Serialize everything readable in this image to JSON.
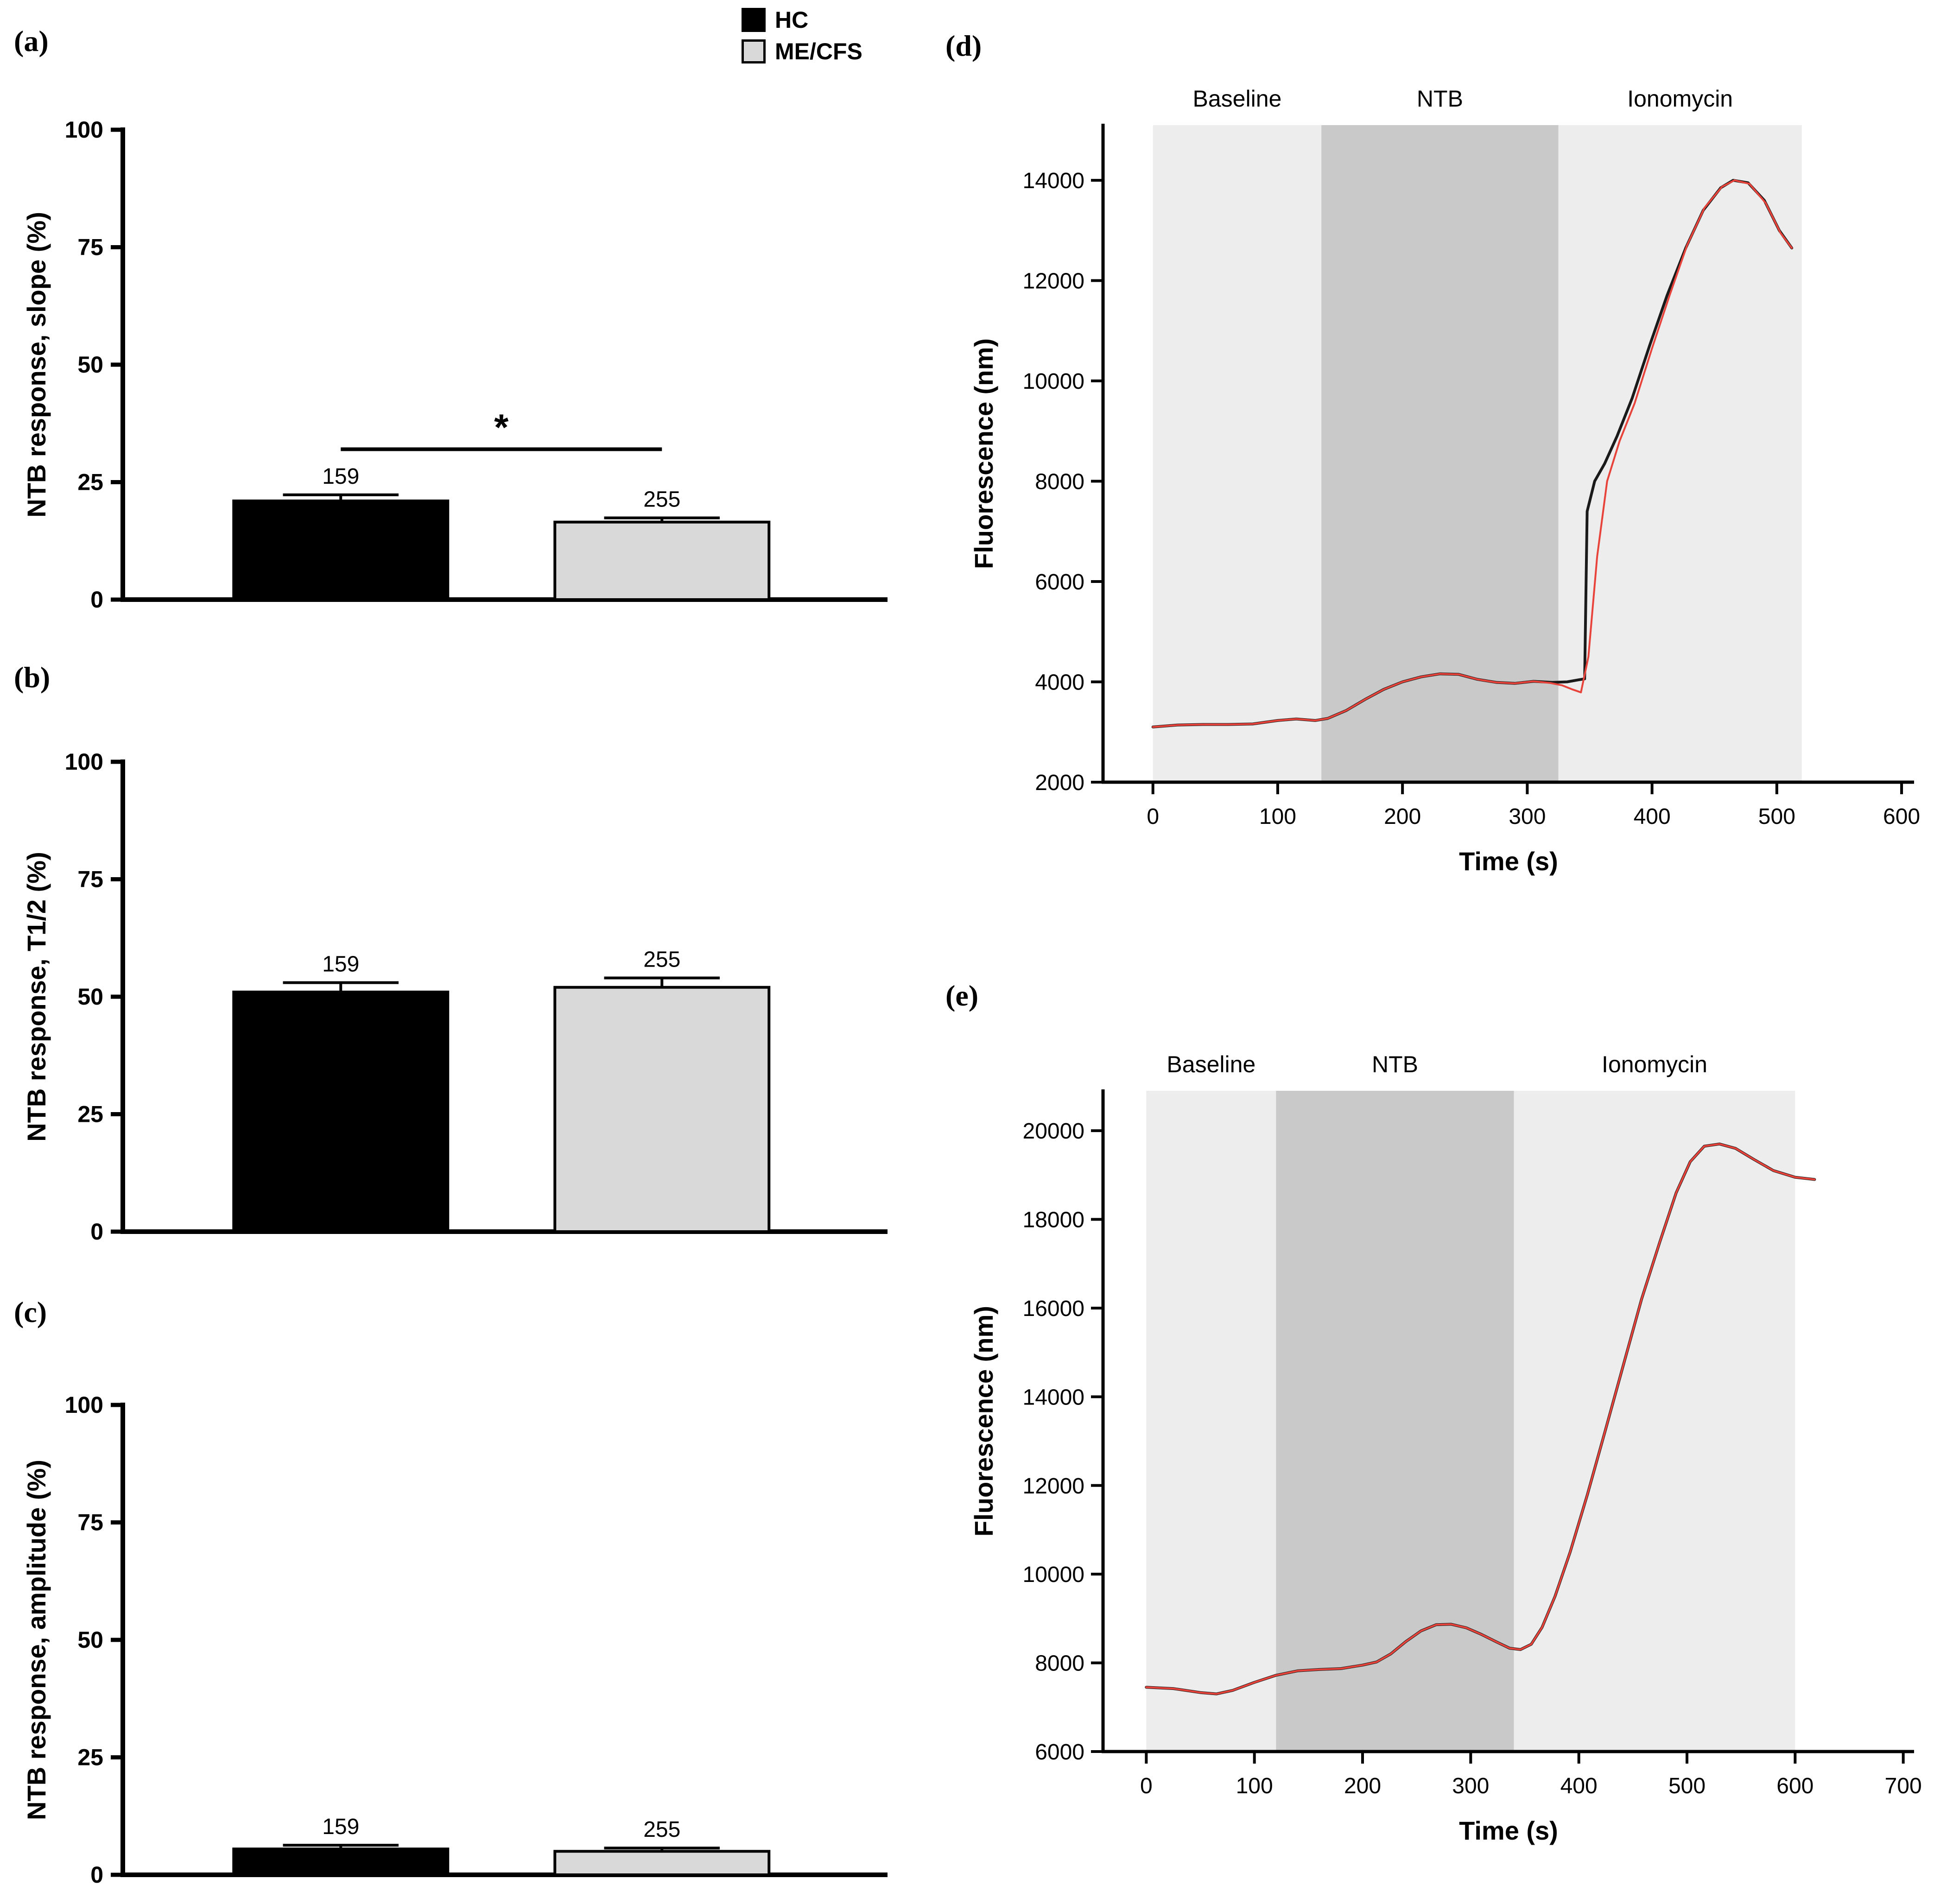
{
  "page": {
    "background": "#ffffff"
  },
  "legend": {
    "items": [
      {
        "label": "HC",
        "color": "#000000"
      },
      {
        "label": "ME/CFS",
        "color": "#d9d9d9"
      }
    ]
  },
  "panels": {
    "a": {
      "tag": "(a)"
    },
    "b": {
      "tag": "(b)"
    },
    "c": {
      "tag": "(c)"
    },
    "d": {
      "tag": "(d)"
    },
    "e": {
      "tag": "(e)"
    }
  },
  "chart_data": [
    {
      "id": "a",
      "type": "bar",
      "title": "",
      "ylabel": "NTB response, slope (%)",
      "ylim": [
        0,
        100
      ],
      "yticks": [
        0,
        25,
        50,
        75,
        100
      ],
      "categories": [
        "HC",
        "ME/CFS"
      ],
      "values": [
        21,
        16.5
      ],
      "errors": [
        1.3,
        0.9
      ],
      "bar_labels": [
        "159",
        "255"
      ],
      "bar_colors": [
        "#000000",
        "#d9d9d9"
      ],
      "significance": {
        "label": "*",
        "y": 32
      }
    },
    {
      "id": "b",
      "type": "bar",
      "title": "",
      "ylabel": "NTB response, T1/2 (%)",
      "ylim": [
        0,
        100
      ],
      "yticks": [
        0,
        25,
        50,
        75,
        100
      ],
      "categories": [
        "HC",
        "ME/CFS"
      ],
      "values": [
        51,
        52
      ],
      "errors": [
        2,
        2
      ],
      "bar_labels": [
        "159",
        "255"
      ],
      "bar_colors": [
        "#000000",
        "#d9d9d9"
      ],
      "significance": null
    },
    {
      "id": "c",
      "type": "bar",
      "title": "",
      "ylabel": "NTB response, amplitude (%)",
      "ylim": [
        0,
        100
      ],
      "yticks": [
        0,
        25,
        50,
        75,
        100
      ],
      "categories": [
        "HC",
        "ME/CFS"
      ],
      "values": [
        5.5,
        5
      ],
      "errors": [
        0.8,
        0.7
      ],
      "bar_labels": [
        "159",
        "255"
      ],
      "bar_colors": [
        "#000000",
        "#d9d9d9"
      ],
      "significance": null
    },
    {
      "id": "d",
      "type": "line",
      "title": "",
      "xlabel": "Time (s)",
      "ylabel": "Fluorescence (nm)",
      "xlim": [
        -40,
        610
      ],
      "ylim": [
        2000,
        15100
      ],
      "xticks": [
        0,
        100,
        200,
        300,
        400,
        500,
        600
      ],
      "yticks": [
        2000,
        4000,
        6000,
        8000,
        10000,
        12000,
        14000
      ],
      "grid": false,
      "regions": [
        {
          "label": "Baseline",
          "x0": 0,
          "x1": 135,
          "color": "#ededed"
        },
        {
          "label": "NTB",
          "x0": 135,
          "x1": 325,
          "color": "#c9c9c9"
        },
        {
          "label": "Ionomycin",
          "x0": 325,
          "x1": 520,
          "color": "#ededed"
        }
      ],
      "series": [
        {
          "name": "black-trace",
          "color": "#1a1a1a",
          "width": 6,
          "x": [
            0,
            20,
            40,
            60,
            80,
            100,
            115,
            130,
            140,
            155,
            170,
            185,
            200,
            215,
            230,
            245,
            260,
            275,
            290,
            305,
            320,
            332,
            341,
            346,
            348,
            354,
            362,
            372,
            384,
            398,
            412,
            427,
            441,
            455,
            465,
            477,
            490,
            502,
            512
          ],
          "y": [
            3100,
            3140,
            3150,
            3150,
            3160,
            3230,
            3260,
            3230,
            3270,
            3430,
            3650,
            3850,
            4000,
            4100,
            4160,
            4150,
            4050,
            3990,
            3970,
            4010,
            3990,
            4000,
            4040,
            4060,
            7400,
            8000,
            8350,
            8900,
            9650,
            10700,
            11700,
            12650,
            13400,
            13850,
            14000,
            13950,
            13600,
            13000,
            12650
          ]
        },
        {
          "name": "red-trace",
          "color": "#e8433a",
          "width": 4,
          "x": [
            0,
            20,
            40,
            60,
            80,
            100,
            115,
            130,
            140,
            155,
            170,
            185,
            200,
            215,
            230,
            245,
            260,
            275,
            290,
            305,
            318,
            328,
            336,
            343,
            349,
            356,
            364,
            374,
            386,
            400,
            414,
            428,
            442,
            456,
            466,
            478,
            491,
            503,
            512
          ],
          "y": [
            3100,
            3140,
            3150,
            3150,
            3160,
            3230,
            3260,
            3230,
            3270,
            3430,
            3650,
            3850,
            4000,
            4100,
            4160,
            4150,
            4050,
            3990,
            3970,
            4010,
            3980,
            3930,
            3850,
            3790,
            4500,
            6500,
            8000,
            8800,
            9550,
            10650,
            11700,
            12700,
            13450,
            13870,
            14000,
            13930,
            13550,
            12950,
            12650
          ]
        }
      ]
    },
    {
      "id": "e",
      "type": "line",
      "title": "",
      "xlabel": "Time (s)",
      "ylabel": "Fluorescence (nm)",
      "xlim": [
        -40,
        710
      ],
      "ylim": [
        6000,
        20900
      ],
      "xticks": [
        0,
        100,
        200,
        300,
        400,
        500,
        600,
        700
      ],
      "yticks": [
        6000,
        8000,
        10000,
        12000,
        14000,
        16000,
        18000,
        20000
      ],
      "grid": false,
      "regions": [
        {
          "label": "Baseline",
          "x0": 0,
          "x1": 120,
          "color": "#ededed"
        },
        {
          "label": "NTB",
          "x0": 120,
          "x1": 340,
          "color": "#c9c9c9"
        },
        {
          "label": "Ionomycin",
          "x0": 340,
          "x1": 600,
          "color": "#ededed"
        }
      ],
      "series": [
        {
          "name": "black-trace",
          "color": "#1a1a1a",
          "width": 6,
          "x": [
            0,
            25,
            50,
            65,
            80,
            100,
            120,
            140,
            160,
            180,
            200,
            213,
            226,
            240,
            254,
            268,
            282,
            296,
            310,
            324,
            336,
            346,
            356,
            366,
            378,
            392,
            408,
            424,
            441,
            458,
            475,
            490,
            503,
            516,
            530,
            545,
            562,
            580,
            600,
            618
          ],
          "y": [
            7450,
            7420,
            7330,
            7300,
            7380,
            7560,
            7720,
            7820,
            7850,
            7870,
            7950,
            8020,
            8200,
            8480,
            8720,
            8860,
            8870,
            8790,
            8640,
            8470,
            8330,
            8300,
            8420,
            8800,
            9500,
            10500,
            11800,
            13200,
            14700,
            16200,
            17500,
            18600,
            19300,
            19650,
            19700,
            19600,
            19350,
            19100,
            18950,
            18900
          ]
        },
        {
          "name": "red-trace",
          "color": "#e8433a",
          "width": 4,
          "x": [
            0,
            25,
            50,
            65,
            80,
            100,
            120,
            140,
            160,
            180,
            200,
            213,
            226,
            240,
            254,
            268,
            282,
            296,
            310,
            324,
            336,
            346,
            356,
            366,
            378,
            392,
            408,
            424,
            441,
            458,
            475,
            490,
            503,
            516,
            530,
            545,
            562,
            580,
            600,
            618
          ],
          "y": [
            7450,
            7420,
            7330,
            7300,
            7380,
            7560,
            7720,
            7820,
            7850,
            7870,
            7950,
            8020,
            8200,
            8480,
            8720,
            8860,
            8870,
            8790,
            8640,
            8470,
            8330,
            8300,
            8420,
            8800,
            9500,
            10500,
            11800,
            13200,
            14700,
            16200,
            17500,
            18600,
            19300,
            19650,
            19700,
            19600,
            19350,
            19100,
            18950,
            18900
          ]
        }
      ]
    }
  ]
}
